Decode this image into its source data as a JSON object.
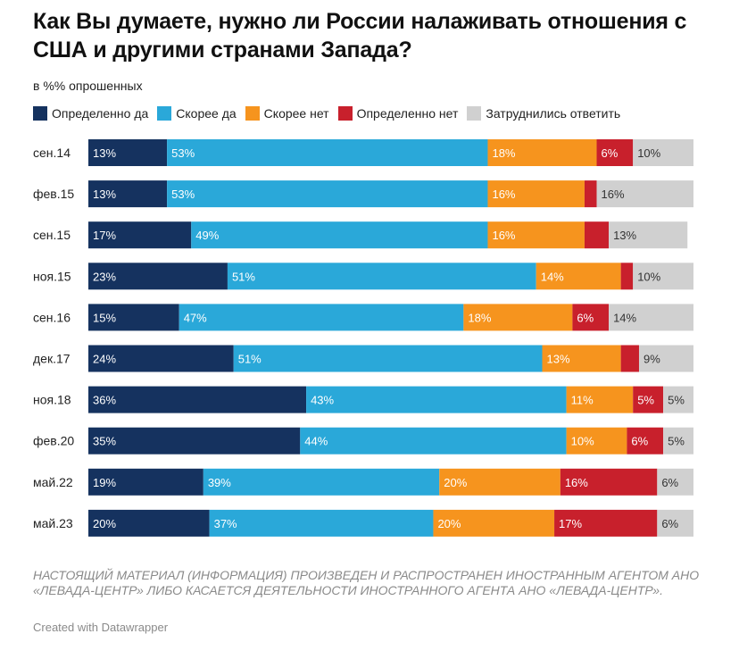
{
  "title": "Как Вы думаете, нужно ли России налаживать отношения с США и другими странами Запада?",
  "subtitle": "в %% опрошенных",
  "footer_note": "НАСТОЯЩИЙ МАТЕРИАЛ (ИНФОРМАЦИЯ) ПРОИЗВЕДЕН И РАСПРОСТРАНЕН ИНОСТРАННЫМ АГЕНТОМ АНО «ЛЕВАДА-ЦЕНТР» ЛИБО КАСАЕТСЯ ДЕЯТЕЛЬНОСТИ ИНОСТРАННОГО АГЕНТА АНО «ЛЕВАДА-ЦЕНТР».",
  "credit": "Created with Datawrapper",
  "chart_data": {
    "type": "bar",
    "orientation": "horizontal",
    "stacked": true,
    "title": "Как Вы думаете, нужно ли России налаживать отношения с США и другими странами Запада?",
    "subtitle": "в %% опрошенных",
    "xlim": [
      0,
      100
    ],
    "value_suffix": "%",
    "categories": [
      "сен.14",
      "фев.15",
      "сен.15",
      "ноя.15",
      "сен.16",
      "дек.17",
      "ноя.18",
      "фев.20",
      "май.22",
      "май.23"
    ],
    "series": [
      {
        "name": "Определенно да",
        "color": "#15325f",
        "label_color": "#ffffff",
        "values": [
          13,
          13,
          17,
          23,
          15,
          24,
          36,
          35,
          19,
          20
        ]
      },
      {
        "name": "Скорее да",
        "color": "#2aa8d9",
        "label_color": "#ffffff",
        "values": [
          53,
          53,
          49,
          51,
          47,
          51,
          43,
          44,
          39,
          37
        ]
      },
      {
        "name": "Скорее нет",
        "color": "#f6941e",
        "label_color": "#ffffff",
        "values": [
          18,
          16,
          16,
          14,
          18,
          13,
          11,
          10,
          20,
          20
        ]
      },
      {
        "name": "Определенно нет",
        "color": "#c8202c",
        "label_color": "#ffffff",
        "values": [
          6,
          2,
          4,
          2,
          6,
          3,
          5,
          6,
          16,
          17
        ]
      },
      {
        "name": "Затруднились ответить",
        "color": "#d0d0d0",
        "label_color": "#333333",
        "values": [
          10,
          16,
          13,
          10,
          14,
          9,
          5,
          5,
          6,
          6
        ]
      }
    ],
    "labels": [
      [
        "13%",
        "53%",
        "18%",
        "6%",
        "10%"
      ],
      [
        "13%",
        "53%",
        "16%",
        "",
        "16%"
      ],
      [
        "17%",
        "49%",
        "16%",
        "",
        "13%"
      ],
      [
        "23%",
        "51%",
        "14%",
        "",
        "10%"
      ],
      [
        "15%",
        "47%",
        "18%",
        "6%",
        "14%"
      ],
      [
        "24%",
        "51%",
        "13%",
        "",
        "9%"
      ],
      [
        "36%",
        "43%",
        "11%",
        "5%",
        "5%"
      ],
      [
        "35%",
        "44%",
        "10%",
        "6%",
        "5%"
      ],
      [
        "19%",
        "39%",
        "20%",
        "16%",
        "6%"
      ],
      [
        "20%",
        "37%",
        "20%",
        "17%",
        "6%"
      ]
    ]
  }
}
